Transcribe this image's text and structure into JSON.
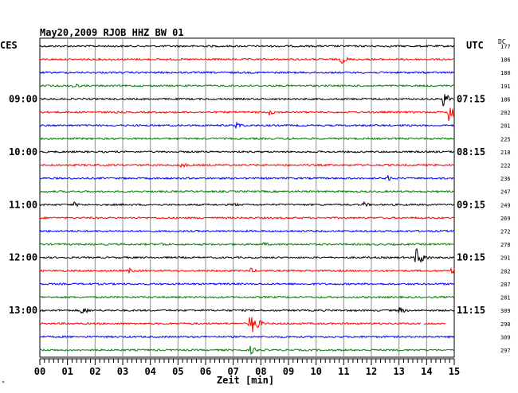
{
  "header": {
    "title": "May20,2009   RJOB HHZ BW 01",
    "left_tz": "CES",
    "right_tz": "UTC",
    "dc_label": "DC"
  },
  "chart_data": {
    "type": "line",
    "title": "May20,2009   RJOB HHZ BW 01",
    "xlabel": "Zeit [min]",
    "xlim": [
      0,
      15
    ],
    "x_ticks": [
      "00",
      "01",
      "02",
      "03",
      "04",
      "05",
      "06",
      "07",
      "08",
      "09",
      "10",
      "11",
      "12",
      "13",
      "14",
      "15"
    ],
    "left_time_labels": [
      {
        "row": 4,
        "text": "09:00"
      },
      {
        "row": 8,
        "text": "10:00"
      },
      {
        "row": 12,
        "text": "11:00"
      },
      {
        "row": 16,
        "text": "12:00"
      },
      {
        "row": 20,
        "text": "13:00"
      }
    ],
    "right_time_labels": [
      {
        "row": 4,
        "text": "07:15"
      },
      {
        "row": 8,
        "text": "08:15"
      },
      {
        "row": 12,
        "text": "09:15"
      },
      {
        "row": 16,
        "text": "10:15"
      },
      {
        "row": 20,
        "text": "11:15"
      }
    ],
    "trace_colors": [
      "#000000",
      "#ff0000",
      "#0000ff",
      "#008000"
    ],
    "dc_offsets": [
      177,
      186,
      180,
      191,
      186,
      202,
      201,
      225,
      218,
      222,
      236,
      247,
      249,
      269,
      272,
      278,
      291,
      282,
      287,
      281,
      309,
      290,
      309,
      297
    ],
    "events": [
      {
        "row": 1,
        "minute": 10.9,
        "amplitude": 6
      },
      {
        "row": 3,
        "minute": 1.2,
        "amplitude": 4
      },
      {
        "row": 5,
        "minute": 14.8,
        "amplitude": 14
      },
      {
        "row": 4,
        "minute": 14.6,
        "amplitude": 10
      },
      {
        "row": 5,
        "minute": 8.3,
        "amplitude": 4
      },
      {
        "row": 6,
        "minute": 7.1,
        "amplitude": 5
      },
      {
        "row": 7,
        "minute": 9.0,
        "amplitude": 3
      },
      {
        "row": 9,
        "minute": 5.1,
        "amplitude": 4
      },
      {
        "row": 10,
        "minute": 12.6,
        "amplitude": 4
      },
      {
        "row": 12,
        "minute": 1.2,
        "amplitude": 4
      },
      {
        "row": 12,
        "minute": 11.7,
        "amplitude": 4
      },
      {
        "row": 12,
        "minute": 7.0,
        "amplitude": 3
      },
      {
        "row": 15,
        "minute": 4.4,
        "amplitude": 3
      },
      {
        "row": 15,
        "minute": 8.1,
        "amplitude": 3
      },
      {
        "row": 16,
        "minute": 13.6,
        "amplitude": 14
      },
      {
        "row": 17,
        "minute": 3.2,
        "amplitude": 4
      },
      {
        "row": 17,
        "minute": 7.6,
        "amplitude": 4
      },
      {
        "row": 17,
        "minute": 14.9,
        "amplitude": 5
      },
      {
        "row": 20,
        "minute": 1.5,
        "amplitude": 6
      },
      {
        "row": 20,
        "minute": 13.0,
        "amplitude": 5
      },
      {
        "row": 21,
        "minute": 7.6,
        "amplitude": 18
      },
      {
        "row": 23,
        "minute": 7.6,
        "amplitude": 6
      }
    ],
    "gaps": [
      {
        "row": 21,
        "from_minute": 13.8,
        "to_minute": 13.9
      },
      {
        "row": 21,
        "from_minute": 14.7,
        "to_minute": 15.0
      }
    ]
  }
}
